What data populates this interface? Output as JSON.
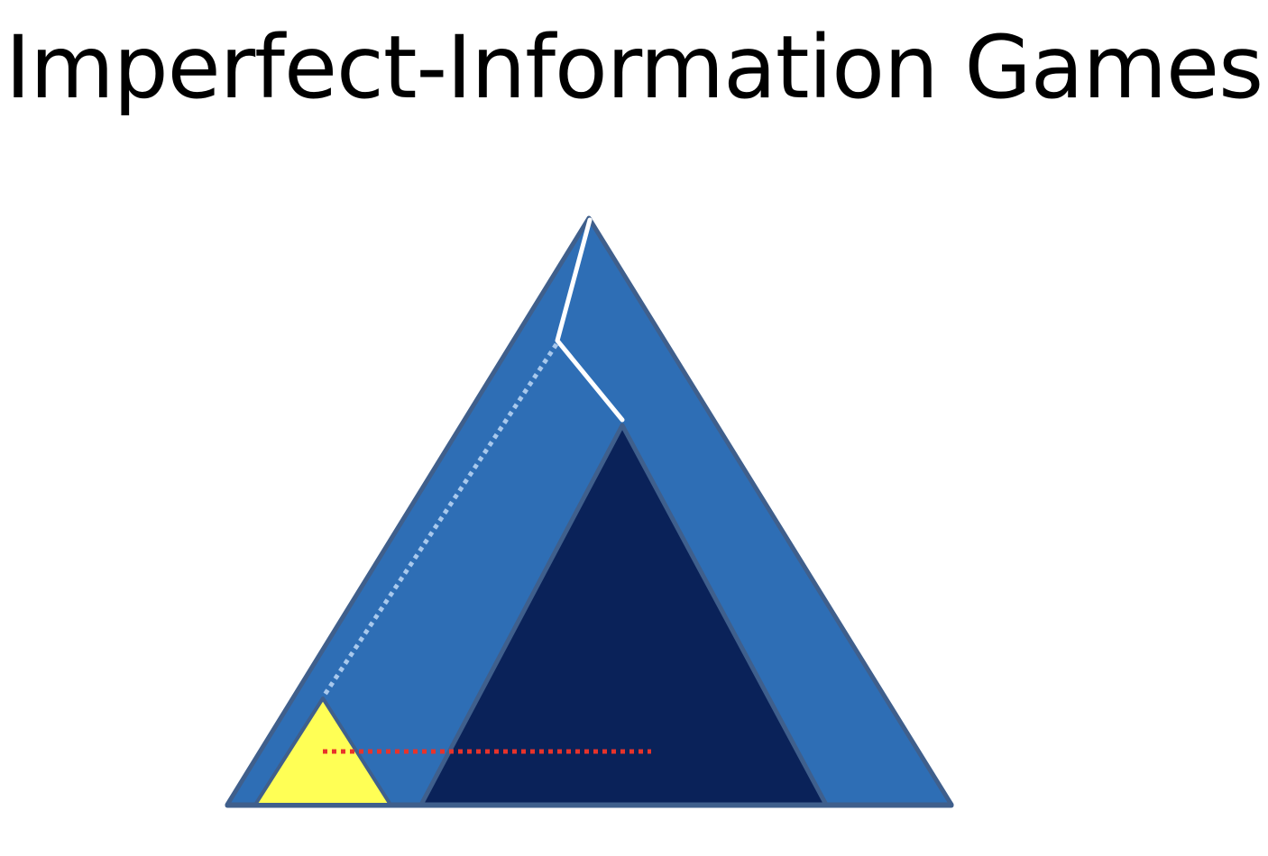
{
  "slide": {
    "title": "Imperfect-Information Games"
  },
  "colors": {
    "outer_tree_fill": "#2E6EB5",
    "outline": "#3F5F8C",
    "inner_subtree_fill": "#0A2259",
    "yellow_subtree_fill": "#FFFF55",
    "path_line": "#FFFFFF",
    "dotted_path": "#A8C8EC",
    "info_set_line": "#E8332A"
  }
}
